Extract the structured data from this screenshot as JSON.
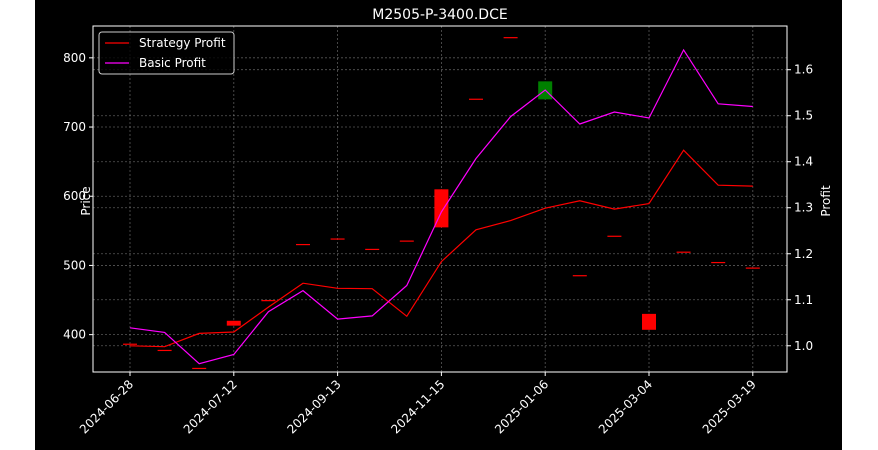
{
  "chart_data": {
    "type": "candlestick+line",
    "title": "M2505-P-3400.DCE",
    "ylabel_left": "Price",
    "ylabel_right": "Profit",
    "ylim_left": [
      346,
      846
    ],
    "ylim_right": [
      0.943,
      1.695
    ],
    "left_ticks": [
      400,
      500,
      600,
      700,
      800
    ],
    "right_ticks": [
      1.0,
      1.1,
      1.2,
      1.3,
      1.4,
      1.5,
      1.6
    ],
    "x_tick_labels": [
      "2024-06-28",
      "2024-07-12",
      "2024-09-13",
      "2024-11-15",
      "2025-01-06",
      "2025-03-04",
      "2025-03-19"
    ],
    "x_tick_index": [
      0,
      3,
      6,
      9,
      12,
      15,
      18
    ],
    "grid": true,
    "legend_position": "top-left",
    "colors": {
      "up": "#008000",
      "down": "#ff0000",
      "strategy": "#ff0000",
      "basic": "#ff00ff",
      "grid": "#b0b0b0"
    },
    "candles": [
      {
        "open": 387,
        "close": 387,
        "high": 387,
        "low": 387
      },
      {
        "open": 378,
        "close": 378,
        "high": 378,
        "low": 378
      },
      {
        "open": 352,
        "close": 352,
        "high": 352,
        "low": 352
      },
      {
        "open": 420,
        "close": 413,
        "high": 420,
        "low": 413
      },
      {
        "open": 450,
        "close": 450,
        "high": 450,
        "low": 450
      },
      {
        "open": 531,
        "close": 531,
        "high": 531,
        "low": 531
      },
      {
        "open": 539,
        "close": 539,
        "high": 539,
        "low": 539
      },
      {
        "open": 524,
        "close": 524,
        "high": 524,
        "low": 524
      },
      {
        "open": 536,
        "close": 536,
        "high": 536,
        "low": 536
      },
      {
        "open": 610,
        "close": 555,
        "high": 610,
        "low": 555
      },
      {
        "open": 741,
        "close": 741,
        "high": 741,
        "low": 741
      },
      {
        "open": 830,
        "close": 830,
        "high": 830,
        "low": 830
      },
      {
        "open": 740,
        "close": 766,
        "high": 766,
        "low": 740
      },
      {
        "open": 486,
        "close": 486,
        "high": 486,
        "low": 486
      },
      {
        "open": 543,
        "close": 543,
        "high": 543,
        "low": 543
      },
      {
        "open": 430,
        "close": 407,
        "high": 430,
        "low": 407
      },
      {
        "open": 520,
        "close": 520,
        "high": 520,
        "low": 520
      },
      {
        "open": 505,
        "close": 505,
        "high": 505,
        "low": 505
      },
      {
        "open": 497,
        "close": 497,
        "high": 497,
        "low": 497
      }
    ],
    "series": [
      {
        "name": "Strategy Profit",
        "values": [
          1.0,
          0.998,
          1.027,
          1.03,
          1.084,
          1.136,
          1.125,
          1.124,
          1.064,
          1.183,
          1.252,
          1.272,
          1.299,
          1.315,
          1.297,
          1.309,
          1.425,
          1.349,
          1.347
        ]
      },
      {
        "name": "Basic Profit",
        "values": [
          1.039,
          1.029,
          0.961,
          0.981,
          1.074,
          1.12,
          1.058,
          1.065,
          1.131,
          1.291,
          1.407,
          1.498,
          1.556,
          1.482,
          1.508,
          1.495,
          1.643,
          1.526,
          1.52
        ]
      }
    ]
  }
}
